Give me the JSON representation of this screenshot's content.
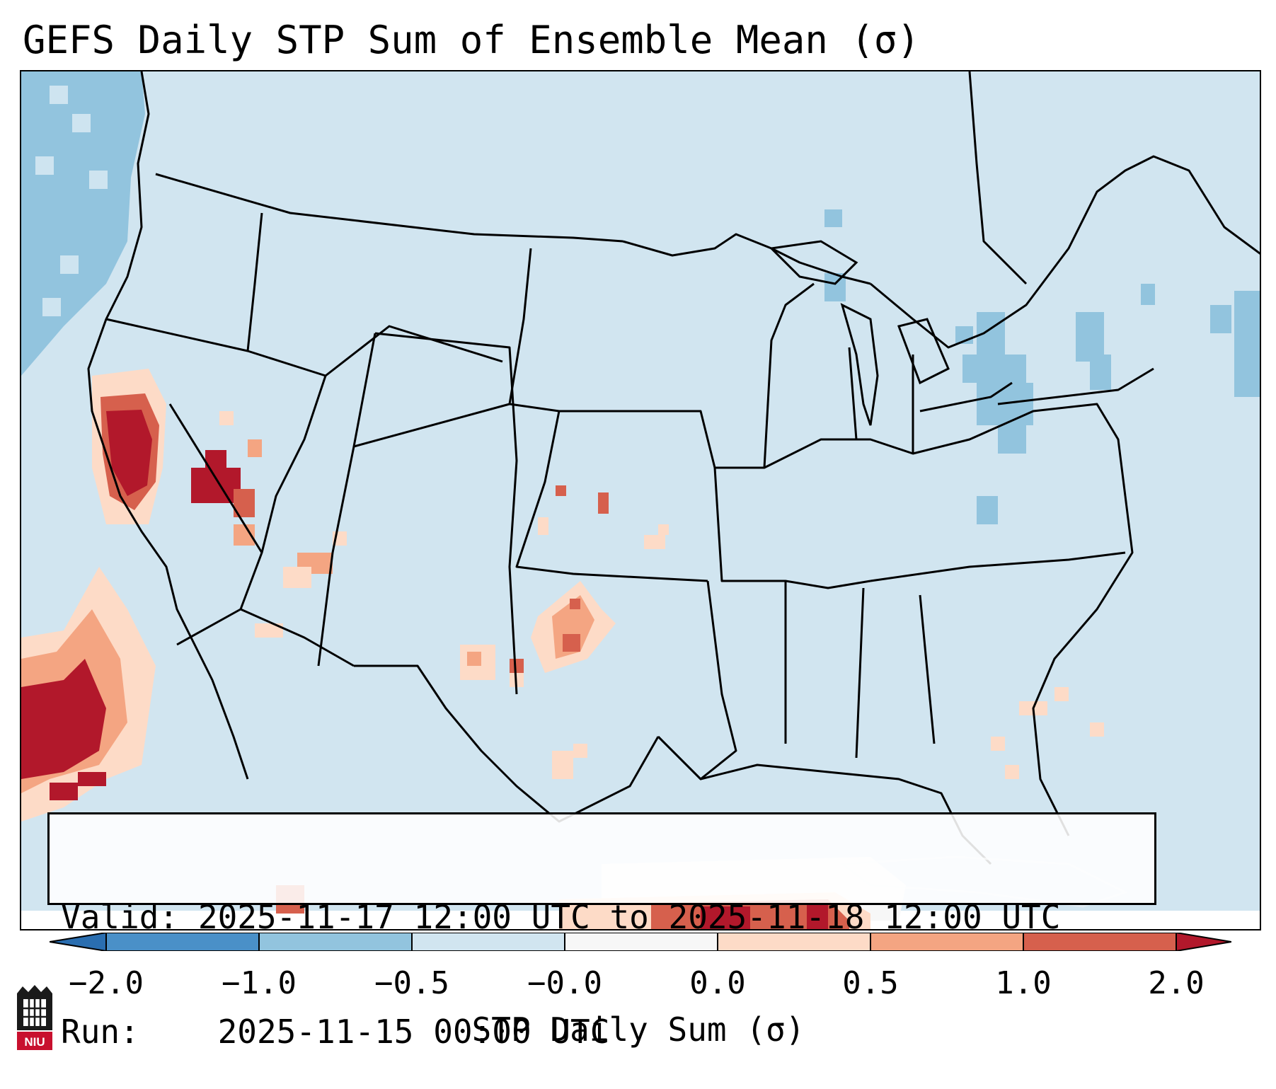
{
  "title": "GEFS Daily STP Sum of Ensemble Mean (σ)",
  "info": {
    "valid_label": "Valid:",
    "valid_value": "2025-11-17 12:00 UTC to 2025-11-18 12:00 UTC",
    "run_label": "Run:",
    "run_value": "2025-11-15 00:00 UTC"
  },
  "colorbar": {
    "label": "STP Daily Sum (σ)",
    "ticks": [
      "−2.0",
      "−1.0",
      "−0.5",
      "−0.0",
      "0.0",
      "0.5",
      "1.0",
      "2.0"
    ],
    "bins": [
      {
        "range": "< -2.0",
        "color": "#2a6eb0"
      },
      {
        "range": "-2.0 to -1.0",
        "color": "#4a90c8"
      },
      {
        "range": "-1.0 to -0.5",
        "color": "#92c4de"
      },
      {
        "range": "-0.5 to -0.0",
        "color": "#d1e5f0"
      },
      {
        "range": "-0.0 to 0.0",
        "color": "#f7f7f7"
      },
      {
        "range": "0.0 to 0.5",
        "color": "#fddbc7"
      },
      {
        "range": "0.5 to 1.0",
        "color": "#f4a582"
      },
      {
        "range": "1.0 to 2.0",
        "color": "#d6604d"
      },
      {
        "range": "> 2.0",
        "color": "#b2182b"
      }
    ]
  },
  "map": {
    "region": "Contiguous United States",
    "background_color": "#d1e5f0",
    "anomaly_areas": [
      {
        "region": "Pacific Northwest coast",
        "category": "-1.0 to -0.5"
      },
      {
        "region": "Northern California",
        "category": "> 2.0"
      },
      {
        "region": "Southern Nevada",
        "category": "> 2.0"
      },
      {
        "region": "Eastern Pacific off Baja California",
        "category": "> 2.0"
      },
      {
        "region": "North-central Texas",
        "category": "1.0 to 2.0"
      },
      {
        "region": "Western Caribbean / Cuba",
        "category": "> 2.0"
      },
      {
        "region": "Pennsylvania / New York",
        "category": "-1.0 to -0.5"
      },
      {
        "region": "Upper Michigan",
        "category": "-1.0 to -0.5"
      }
    ]
  },
  "logo": {
    "text": "NIU"
  }
}
